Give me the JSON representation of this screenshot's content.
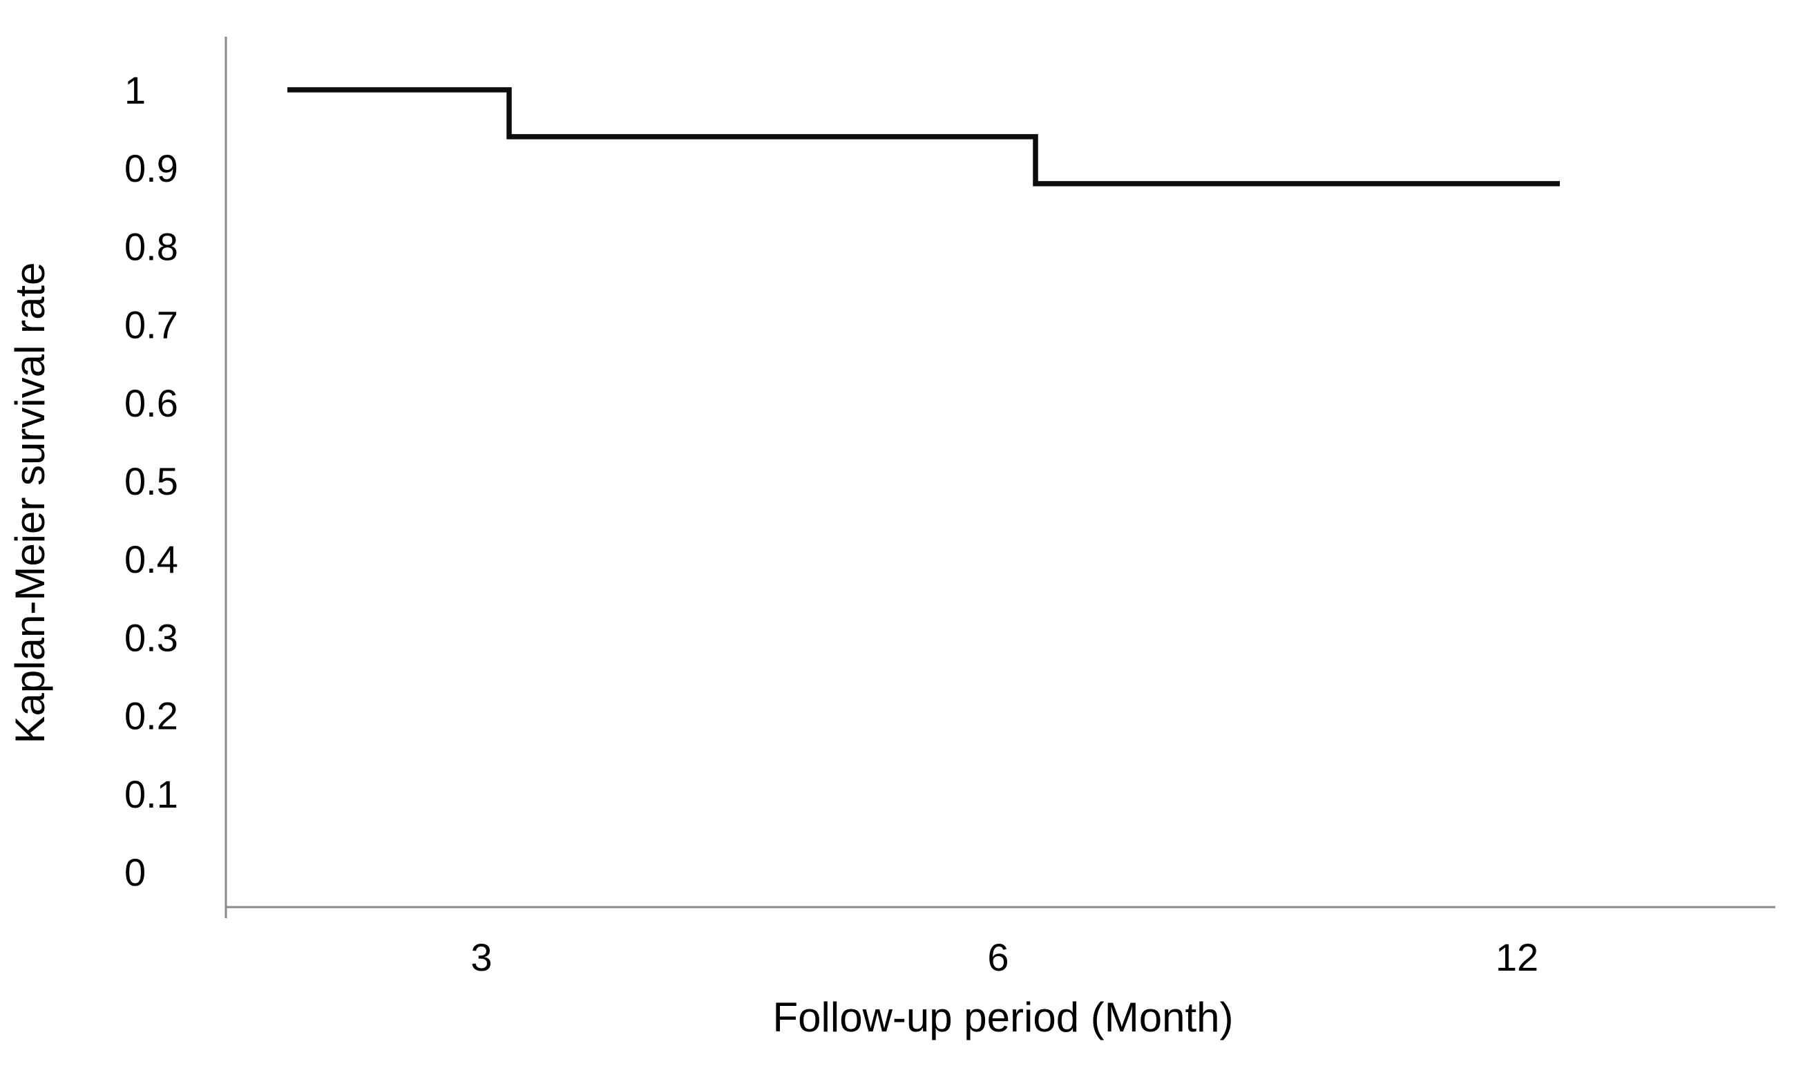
{
  "figure": {
    "background": "#ffffff"
  },
  "chart_data": {
    "type": "line",
    "subtype": "kaplan-meier-step-curve",
    "title": "",
    "xlabel": "Follow-up period (Month)",
    "ylabel": "Kaplan-Meier survival rate",
    "x_tick_labels": [
      "3",
      "6",
      "12"
    ],
    "y_tick_labels": [
      "1",
      "0.9",
      "0.8",
      "0.7",
      "0.6",
      "0.5",
      "0.4",
      "0.3",
      "0.2",
      "0.1",
      "0"
    ],
    "ylim": [
      0,
      1
    ],
    "x_axis_unit": "months",
    "grid": false,
    "legend": "none",
    "series": [
      {
        "name": "Kaplan-Meier survival rate",
        "survival_levels": [
          1.0,
          0.94,
          0.88
        ],
        "drop_times_months": [
          3,
          6
        ],
        "follow_up_end_month": 12
      }
    ],
    "line_color": "#0d0d0d",
    "axis_color": "#8a8a8a",
    "text_color": "#000000"
  }
}
